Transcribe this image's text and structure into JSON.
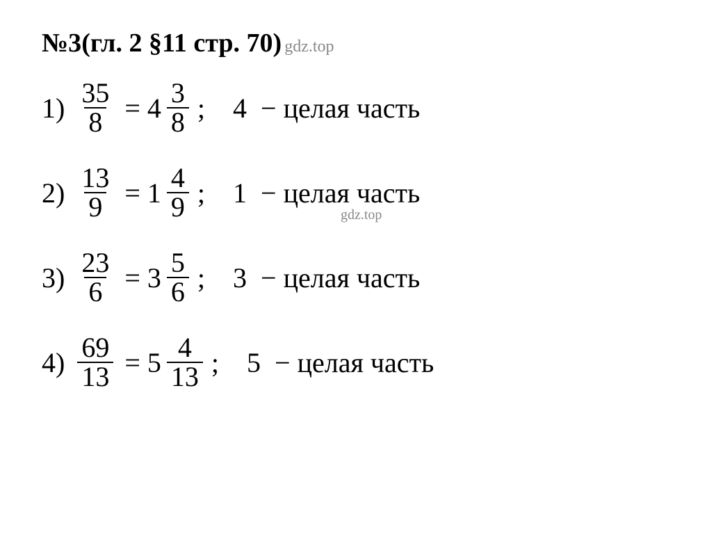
{
  "header": {
    "problem_label": "№3",
    "chapter_info": " (гл. 2 §11 стр. 70)",
    "watermark": "gdz.top"
  },
  "problems": [
    {
      "index": "1)",
      "frac_num": "35",
      "frac_denom": "8",
      "mixed_whole": "4",
      "mixed_num": "3",
      "mixed_denom": "8",
      "answer_value": "4",
      "answer_text": "целая часть"
    },
    {
      "index": "2)",
      "frac_num": "13",
      "frac_denom": "9",
      "mixed_whole": "1",
      "mixed_num": "4",
      "mixed_denom": "9",
      "answer_value": "1",
      "answer_text": "целая часть"
    },
    {
      "index": "3)",
      "frac_num": "23",
      "frac_denom": "6",
      "mixed_whole": "3",
      "mixed_num": "5",
      "mixed_denom": "6",
      "answer_value": "3",
      "answer_text": "целая часть"
    },
    {
      "index": "4)",
      "frac_num": "69",
      "frac_denom": "13",
      "mixed_whole": "5",
      "mixed_num": "4",
      "mixed_denom": "13",
      "answer_value": "5",
      "answer_text": "целая часть"
    }
  ],
  "symbols": {
    "equals": "=",
    "semicolon": ";",
    "minus": "−"
  },
  "watermark_mid": "gdz.top",
  "colors": {
    "text": "#000000",
    "watermark": "#888888",
    "background": "#ffffff"
  }
}
